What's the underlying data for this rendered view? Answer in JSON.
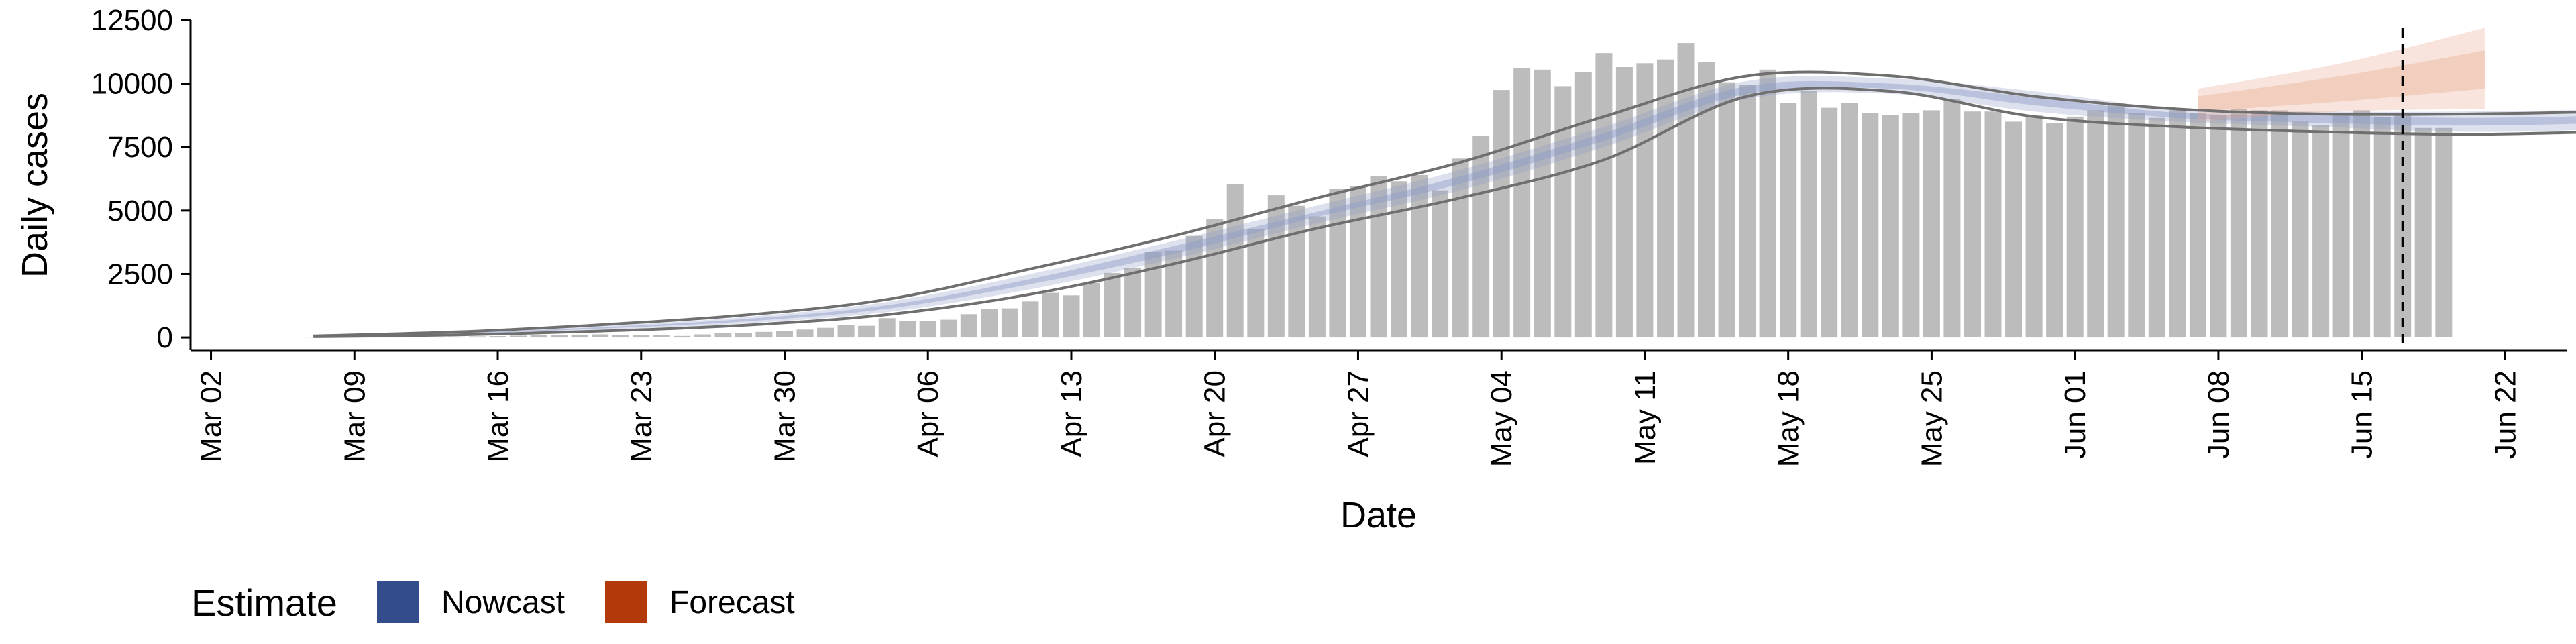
{
  "chart_data": {
    "type": "bar",
    "xlabel": "Date",
    "ylabel": "Daily cases",
    "xlim": [
      "2020-03-01",
      "2020-06-25"
    ],
    "ylim": [
      -500,
      12500
    ],
    "y_ticks": [
      0,
      2500,
      5000,
      7500,
      10000,
      12500
    ],
    "y_tick_labels": [
      "0",
      "2500",
      "5000",
      "7500",
      "10000",
      "12500"
    ],
    "x_ticks": [
      "2020-03-02",
      "2020-03-09",
      "2020-03-16",
      "2020-03-23",
      "2020-03-30",
      "2020-04-06",
      "2020-04-13",
      "2020-04-20",
      "2020-04-27",
      "2020-05-04",
      "2020-05-11",
      "2020-05-18",
      "2020-05-25",
      "2020-06-01",
      "2020-06-08",
      "2020-06-15",
      "2020-06-22"
    ],
    "x_tick_labels": [
      "Mar 02",
      "Mar 09",
      "Mar 16",
      "Mar 23",
      "Mar 30",
      "Apr 06",
      "Apr 13",
      "Apr 20",
      "Apr 27",
      "May 04",
      "May 11",
      "May 18",
      "May 25",
      "Jun 01",
      "Jun 08",
      "Jun 15",
      "Jun 22"
    ],
    "grid": false,
    "legend": {
      "title": "Estimate",
      "position": "bottom-left",
      "entries": [
        {
          "label": "Nowcast",
          "color": "#334d8c"
        },
        {
          "label": "Forecast",
          "color": "#b23a0a"
        }
      ]
    },
    "reported_cases": {
      "start_date": "2020-03-07",
      "values": [
        5,
        8,
        12,
        15,
        18,
        22,
        28,
        35,
        45,
        55,
        70,
        85,
        100,
        110,
        120,
        90,
        100,
        80,
        60,
        120,
        160,
        180,
        220,
        260,
        310,
        380,
        480,
        460,
        760,
        660,
        640,
        700,
        920,
        1120,
        1150,
        1420,
        1760,
        1660,
        2150,
        2540,
        2750,
        3370,
        3420,
        4000,
        4670,
        6050,
        4260,
        5600,
        5190,
        4770,
        5850,
        5950,
        6350,
        6150,
        6400,
        5800,
        7050,
        7950,
        9750,
        10600,
        10550,
        9900,
        10450,
        11200,
        10650,
        10800,
        10950,
        11600,
        10850,
        10050,
        9950,
        10550,
        9250,
        9700,
        9050,
        9250,
        8850,
        8750,
        8850,
        8950,
        9400,
        8900,
        8900,
        8500,
        8750,
        8450,
        8700,
        8950,
        9250,
        8850,
        8650,
        8950,
        8850,
        8750,
        9000,
        8950,
        8950,
        8500,
        8350,
        8750,
        8950,
        8700,
        8850,
        8250,
        8250
      ],
      "color": "#bcbcbc"
    },
    "nowcast": {
      "start_date": "2020-03-07",
      "end_date": "2020-06-06",
      "lower_90": [
        [
          0,
          30
        ],
        [
          7,
          120
        ],
        [
          14,
          300
        ],
        [
          21,
          550
        ],
        [
          28,
          1000
        ],
        [
          35,
          1900
        ],
        [
          42,
          3100
        ],
        [
          49,
          4500
        ],
        [
          56,
          5800
        ],
        [
          63,
          7500
        ],
        [
          70,
          9400
        ],
        [
          77,
          9600
        ],
        [
          84,
          8900
        ],
        [
          91,
          8500
        ],
        [
          98,
          8300
        ],
        [
          105,
          8100
        ],
        [
          112,
          8200
        ],
        [
          119,
          8400
        ],
        [
          126,
          8700
        ],
        [
          133,
          9000
        ]
      ],
      "upper_90": [
        [
          0,
          60
        ],
        [
          7,
          200
        ],
        [
          14,
          450
        ],
        [
          21,
          800
        ],
        [
          28,
          1400
        ],
        [
          35,
          2500
        ],
        [
          42,
          3800
        ],
        [
          49,
          5200
        ],
        [
          56,
          6600
        ],
        [
          63,
          8300
        ],
        [
          70,
          10100
        ],
        [
          77,
          10200
        ],
        [
          84,
          9700
        ],
        [
          91,
          9000
        ],
        [
          98,
          8900
        ],
        [
          105,
          8900
        ],
        [
          112,
          9000
        ],
        [
          119,
          9300
        ],
        [
          126,
          9500
        ],
        [
          133,
          9900
        ]
      ],
      "lower_50": [
        [
          0,
          38
        ],
        [
          7,
          140
        ],
        [
          14,
          350
        ],
        [
          21,
          630
        ],
        [
          28,
          1130
        ],
        [
          35,
          2100
        ],
        [
          42,
          3300
        ],
        [
          49,
          4750
        ],
        [
          56,
          6050
        ],
        [
          63,
          7750
        ],
        [
          70,
          9600
        ],
        [
          77,
          9800
        ],
        [
          84,
          9150
        ],
        [
          91,
          8650
        ],
        [
          98,
          8450
        ],
        [
          105,
          8350
        ],
        [
          112,
          8450
        ],
        [
          119,
          8650
        ],
        [
          126,
          8900
        ],
        [
          133,
          9250
        ]
      ],
      "upper_50": [
        [
          0,
          52
        ],
        [
          7,
          180
        ],
        [
          14,
          400
        ],
        [
          21,
          720
        ],
        [
          28,
          1270
        ],
        [
          35,
          2300
        ],
        [
          42,
          3600
        ],
        [
          49,
          4950
        ],
        [
          56,
          6350
        ],
        [
          63,
          8050
        ],
        [
          70,
          9900
        ],
        [
          77,
          10000
        ],
        [
          84,
          9450
        ],
        [
          91,
          8850
        ],
        [
          98,
          8750
        ],
        [
          105,
          8650
        ],
        [
          112,
          8750
        ],
        [
          119,
          9050
        ],
        [
          126,
          9300
        ],
        [
          133,
          9650
        ]
      ],
      "outline_lower": [
        [
          0,
          30
        ],
        [
          7,
          100
        ],
        [
          14,
          250
        ],
        [
          21,
          480
        ],
        [
          28,
          900
        ],
        [
          35,
          1700
        ],
        [
          42,
          2900
        ],
        [
          49,
          4300
        ],
        [
          56,
          5500
        ],
        [
          63,
          7000
        ],
        [
          70,
          9500
        ],
        [
          77,
          9700
        ],
        [
          84,
          8700
        ],
        [
          91,
          8300
        ],
        [
          98,
          8100
        ],
        [
          105,
          8000
        ],
        [
          112,
          8100
        ],
        [
          119,
          8200
        ],
        [
          126,
          8400
        ],
        [
          133,
          8600
        ]
      ],
      "outline_upper": [
        [
          0,
          60
        ],
        [
          7,
          220
        ],
        [
          14,
          500
        ],
        [
          21,
          880
        ],
        [
          28,
          1500
        ],
        [
          35,
          2700
        ],
        [
          42,
          4000
        ],
        [
          49,
          5500
        ],
        [
          56,
          6900
        ],
        [
          63,
          8700
        ],
        [
          70,
          10300
        ],
        [
          77,
          10300
        ],
        [
          84,
          9500
        ],
        [
          91,
          9000
        ],
        [
          98,
          8800
        ],
        [
          105,
          8800
        ],
        [
          112,
          8900
        ],
        [
          119,
          9100
        ],
        [
          126,
          9400
        ],
        [
          133,
          9500
        ]
      ],
      "band_color": "#8d9cc6"
    },
    "forecast": {
      "start_date": "2020-06-07",
      "end_date": "2020-06-21",
      "lower_90": [
        [
          0,
          8500
        ],
        [
          7,
          8900
        ],
        [
          14,
          9000
        ]
      ],
      "upper_90": [
        [
          0,
          9800
        ],
        [
          7,
          10800
        ],
        [
          14,
          12200
        ]
      ],
      "lower_50": [
        [
          0,
          8900
        ],
        [
          7,
          9300
        ],
        [
          14,
          9800
        ]
      ],
      "upper_50": [
        [
          0,
          9500
        ],
        [
          7,
          10300
        ],
        [
          14,
          11300
        ]
      ],
      "band_color": "#e9a58a"
    },
    "vline_date": "2020-06-17"
  }
}
